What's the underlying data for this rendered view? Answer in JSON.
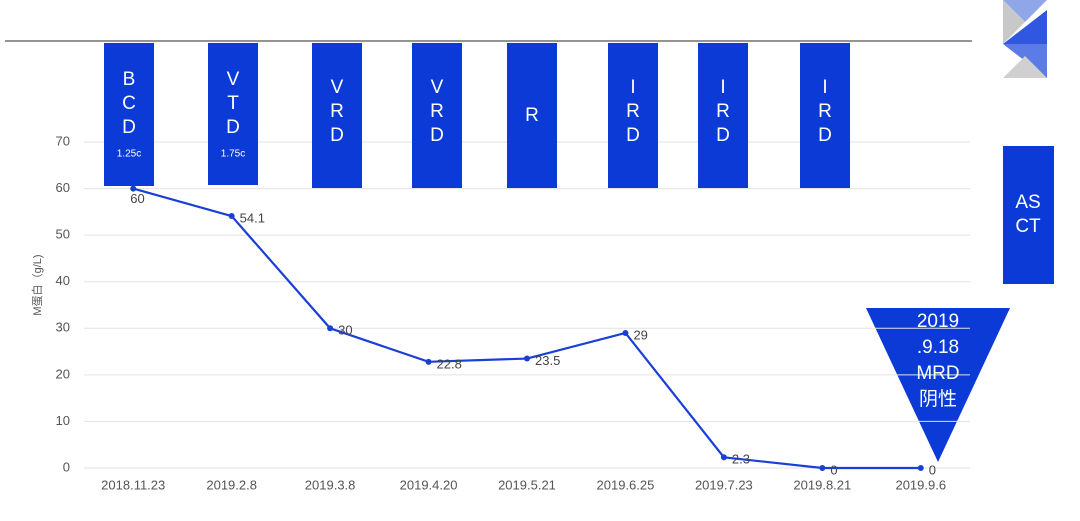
{
  "chart_data": {
    "type": "line",
    "y_label": "M蛋白（g/L)",
    "categories": [
      "2018.11.23",
      "2019.2.8",
      "2019.3.8",
      "2019.4.20",
      "2019.5.21",
      "2019.6.25",
      "2019.7.23",
      "2019.8.21",
      "2019.9.6"
    ],
    "series": [
      {
        "name": "M蛋白",
        "color": "#1a3fd6",
        "values": [
          60,
          54.1,
          30,
          22.8,
          23.5,
          29,
          2.3,
          0,
          0
        ]
      }
    ],
    "ylim": [
      0,
      70
    ],
    "yticks": [
      0,
      10,
      20,
      30,
      40,
      50,
      60,
      70
    ],
    "grid": true,
    "regimens": [
      {
        "letters": [
          "B",
          "C",
          "D"
        ],
        "dose": "1.25c"
      },
      {
        "letters": [
          "V",
          "T",
          "D"
        ],
        "dose": "1.75c"
      },
      {
        "letters": [
          "V",
          "R",
          "D"
        ]
      },
      {
        "letters": [
          "V",
          "R",
          "D"
        ]
      },
      {
        "letters": [
          "R"
        ]
      },
      {
        "letters": [
          "I",
          "R",
          "D"
        ]
      },
      {
        "letters": [
          "I",
          "R",
          "D"
        ]
      },
      {
        "letters": [
          "I",
          "R",
          "D"
        ]
      }
    ],
    "asct": [
      "AS",
      "CT"
    ],
    "mrd": [
      "2019",
      ".9.18",
      "MRD",
      "阴性"
    ]
  }
}
